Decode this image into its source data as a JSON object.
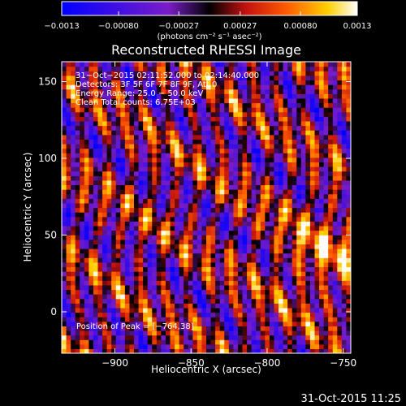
{
  "chart_data": {
    "type": "heatmap",
    "title": "Reconstructed RHESSI Image",
    "xlabel": "Heliocentric X (arcsec)",
    "ylabel": "Heliocentric Y (arcsec)",
    "xlim": [
      -935,
      -745
    ],
    "ylim": [
      -27,
      163
    ],
    "x_ticks": [
      {
        "value": -900,
        "label": "−900"
      },
      {
        "value": -850,
        "label": "−850"
      },
      {
        "value": -800,
        "label": "−800"
      },
      {
        "value": -750,
        "label": "−750"
      }
    ],
    "y_ticks": [
      {
        "value": 0,
        "label": "0"
      },
      {
        "value": 50,
        "label": "50"
      },
      {
        "value": 100,
        "label": "100"
      },
      {
        "value": 150,
        "label": "150"
      }
    ],
    "annotations": [
      "31−Oct−2015 02:11:52.000 to 02:14:40.000",
      "Detectors: 3F 5F 6F 7F 8F 9F, Att 0",
      "Energy Range: 25.0 − 50.0 keV",
      "Clean    Total counts: 6.75E+03"
    ],
    "peak_label": "Position of Peak = [−764,38]",
    "peak": [
      -764,
      38
    ],
    "colorbar": {
      "min": -0.0013,
      "max": 0.0013,
      "ticks": [
        {
          "value": -0.0013,
          "label": "−0.0013"
        },
        {
          "value": -0.0008,
          "label": "−0.00080"
        },
        {
          "value": -0.00027,
          "label": "−0.00027"
        },
        {
          "value": 0.00027,
          "label": "0.00027"
        },
        {
          "value": 0.0008,
          "label": "0.00080"
        },
        {
          "value": 0.0013,
          "label": "0.0013"
        }
      ],
      "units": "(photons cm⁻² s⁻¹ asec⁻²)"
    }
  },
  "footer": {
    "timestamp": "31-Oct-2015 11:25"
  },
  "colors": {
    "background": "#000000",
    "foreground": "#ffffff"
  }
}
